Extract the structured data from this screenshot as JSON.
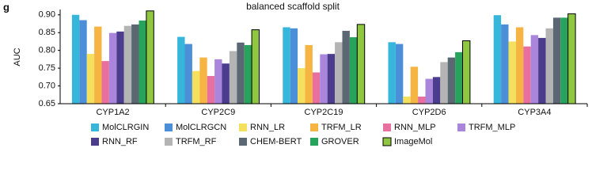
{
  "panel_label": "g",
  "chart_data": {
    "type": "bar",
    "title": "balanced scaffold split",
    "y_label": "AUC",
    "categories": [
      "CYP1A2",
      "CYP2C9",
      "CYP2C19",
      "CYP2D6",
      "CYP3A4"
    ],
    "ylim": [
      0.65,
      0.915
    ],
    "yticks": [
      0.65,
      {
        "value": 0.7,
        "label": "0.70"
      },
      0.75,
      {
        "value": 0.8,
        "label": "0.80"
      },
      0.85,
      {
        "value": 0.9,
        "label": "0.90"
      }
    ],
    "series": [
      {
        "name": "MolCLRGIN",
        "color": "#35b6da",
        "values": [
          0.9,
          0.838,
          0.865,
          0.823,
          0.899
        ]
      },
      {
        "name": "MolCLRGCN",
        "color": "#4a8fd8",
        "values": [
          0.885,
          0.818,
          0.862,
          0.818,
          0.873
        ]
      },
      {
        "name": "RNN_LR",
        "color": "#f4e05c",
        "values": [
          0.79,
          0.742,
          0.75,
          0.67,
          0.825
        ]
      },
      {
        "name": "TRFM_LR",
        "color": "#f6b443",
        "values": [
          0.867,
          0.78,
          0.815,
          0.754,
          0.865
        ]
      },
      {
        "name": "RNN_MLP",
        "color": "#e8709f",
        "values": [
          0.77,
          0.728,
          0.738,
          0.67,
          0.811
        ]
      },
      {
        "name": "TRFM_MLP",
        "color": "#a985dc",
        "values": [
          0.849,
          0.775,
          0.789,
          0.72,
          0.843
        ]
      },
      {
        "name": "RNN_RF",
        "color": "#4b3c8e",
        "values": [
          0.853,
          0.763,
          0.79,
          0.725,
          0.835
        ]
      },
      {
        "name": "TRFM_RF",
        "color": "#b4b4b4",
        "values": [
          0.869,
          0.798,
          0.823,
          0.767,
          0.862
        ]
      },
      {
        "name": "CHEM-BERT",
        "color": "#5b6773",
        "values": [
          0.873,
          0.822,
          0.855,
          0.78,
          0.892
        ]
      },
      {
        "name": "GROVER",
        "color": "#28a35b",
        "values": [
          0.884,
          0.815,
          0.837,
          0.795,
          0.892
        ]
      },
      {
        "name": "ImageMol",
        "color": "#8fc740",
        "edgecolor": "#000000",
        "values": [
          0.911,
          0.858,
          0.873,
          0.827,
          0.903
        ]
      }
    ]
  }
}
